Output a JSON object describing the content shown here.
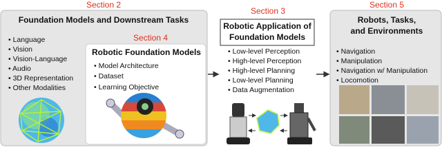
{
  "section2": {
    "label": "Section 2",
    "title": "Foundation Models and Downstream Tasks",
    "items": [
      "Language",
      "Vision",
      "Vision-Language",
      "Audio",
      "3D Representation",
      "Other Modalities"
    ]
  },
  "section4": {
    "label": "Section 4",
    "title": "Robotic Foundation Models",
    "items": [
      "Model Architecture",
      "Dataset",
      "Learning Objective"
    ]
  },
  "section3": {
    "label": "Section 3",
    "title": [
      "Robotic Application of",
      "Foundation Models"
    ],
    "items": [
      "Low-level Perception",
      "High-level Perception",
      "High-level Planning",
      "Low-level Planning",
      "Data Augmentation"
    ]
  },
  "section5": {
    "label": "Section 5",
    "title": [
      "Robots, Tasks,",
      "and Environments"
    ],
    "items": [
      "Navigation",
      "Manipulation",
      "Navigation w/ Manipulation",
      "Locomotion"
    ]
  }
}
